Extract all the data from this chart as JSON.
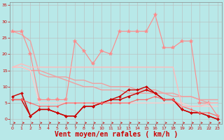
{
  "background_color": "#b8e8e8",
  "grid_color": "#bbbbbb",
  "xlabel": "Vent moyen/en rafales ( km/h )",
  "xlabel_color": "#cc0000",
  "xlabel_fontsize": 7,
  "ytick_labels": [
    "0",
    "5",
    "10",
    "15",
    "20",
    "25",
    "30",
    "35"
  ],
  "yticks": [
    0,
    5,
    10,
    15,
    20,
    25,
    30,
    35
  ],
  "xticks": [
    0,
    1,
    2,
    3,
    4,
    5,
    6,
    7,
    8,
    9,
    10,
    11,
    12,
    13,
    14,
    15,
    16,
    17,
    18,
    19,
    20,
    21,
    22,
    23
  ],
  "xlim": [
    -0.3,
    23.5
  ],
  "ylim": [
    -1.5,
    36
  ],
  "series": [
    {
      "x": [
        0,
        1,
        2,
        3,
        4,
        5,
        6,
        7,
        8,
        9,
        10,
        11,
        12,
        13,
        14,
        15,
        16,
        17,
        18,
        19,
        20,
        21,
        22,
        23
      ],
      "y": [
        27,
        26,
        24,
        14,
        13,
        13,
        12,
        11,
        10,
        10,
        9,
        9,
        9,
        8,
        8,
        8,
        8,
        8,
        7,
        7,
        7,
        6,
        6,
        6
      ],
      "color": "#f0a0a0",
      "lw": 1.0,
      "marker": null
    },
    {
      "x": [
        0,
        1,
        2,
        3,
        4,
        5,
        6,
        7,
        8,
        9,
        10,
        11,
        12,
        13,
        14,
        15,
        16,
        17,
        18,
        19,
        20,
        21,
        22,
        23
      ],
      "y": [
        16,
        16,
        15,
        15,
        14,
        13,
        13,
        12,
        12,
        11,
        11,
        10,
        10,
        10,
        9,
        9,
        9,
        8,
        8,
        7,
        7,
        6,
        5,
        5
      ],
      "color": "#f0a0a0",
      "lw": 1.0,
      "marker": null
    },
    {
      "x": [
        0,
        1,
        2,
        3,
        4,
        5,
        6,
        7,
        8,
        9,
        10,
        11,
        12,
        13,
        14,
        15,
        16,
        17,
        18,
        19,
        20,
        21,
        22,
        23
      ],
      "y": [
        16,
        16,
        15,
        5,
        5,
        5,
        5,
        5,
        5,
        5,
        5,
        5,
        5,
        5,
        5,
        5,
        5,
        5,
        5,
        5,
        4,
        4,
        4,
        4
      ],
      "color": "#ffcccc",
      "lw": 1.0,
      "marker": null
    },
    {
      "x": [
        0,
        1,
        2,
        3,
        4,
        5,
        6,
        7,
        8,
        9,
        10,
        11,
        12,
        13,
        14,
        15,
        16,
        17,
        18,
        19,
        20,
        21,
        22,
        23
      ],
      "y": [
        7,
        8,
        1,
        3,
        3,
        2,
        1,
        1,
        4,
        4,
        5,
        6,
        7,
        9,
        9,
        10,
        8,
        6,
        6,
        3,
        2,
        2,
        1,
        0
      ],
      "color": "#cc0000",
      "lw": 1.0,
      "marker": "D",
      "markersize": 2
    },
    {
      "x": [
        0,
        1,
        2,
        3,
        4,
        5,
        6,
        7,
        8,
        9,
        10,
        11,
        12,
        13,
        14,
        15,
        16,
        17,
        18,
        19,
        20,
        21,
        22,
        23
      ],
      "y": [
        6,
        6,
        1,
        3,
        3,
        2,
        1,
        1,
        4,
        4,
        5,
        6,
        6,
        7,
        8,
        9,
        8,
        6,
        6,
        3,
        2,
        2,
        1,
        0
      ],
      "color": "#cc0000",
      "lw": 1.0,
      "marker": "D",
      "markersize": 2
    },
    {
      "x": [
        0,
        1,
        2,
        3,
        4,
        5,
        6,
        7,
        8,
        9,
        10,
        11,
        12,
        13,
        14,
        15,
        16,
        17,
        18,
        19,
        20,
        21,
        22,
        23
      ],
      "y": [
        6,
        6,
        5,
        4,
        4,
        4,
        5,
        5,
        5,
        5,
        5,
        5,
        5,
        5,
        6,
        6,
        7,
        6,
        6,
        4,
        3,
        2,
        2,
        1
      ],
      "color": "#ff6666",
      "lw": 0.8,
      "marker": "D",
      "markersize": 1.5
    },
    {
      "x": [
        0,
        1,
        2,
        3,
        4,
        5,
        6,
        7,
        8,
        9,
        10,
        11,
        12,
        13,
        14,
        15,
        16,
        17,
        18,
        19,
        20,
        21,
        22,
        23
      ],
      "y": [
        27,
        27,
        20,
        6,
        6,
        6,
        6,
        24,
        21,
        17,
        21,
        20,
        27,
        27,
        27,
        27,
        32,
        22,
        22,
        24,
        24,
        5,
        5,
        1
      ],
      "color": "#ff8888",
      "lw": 0.8,
      "marker": "*",
      "markersize": 4
    },
    {
      "x": [
        0,
        1,
        2,
        3,
        4,
        5,
        6,
        7,
        8,
        9,
        10,
        11,
        12,
        13,
        14,
        15,
        16,
        17,
        18,
        19,
        20,
        21,
        22,
        23
      ],
      "y": [
        16,
        17,
        16,
        16,
        16,
        16,
        16,
        16,
        16,
        16,
        16,
        16,
        16,
        16,
        16,
        16,
        16,
        16,
        16,
        4,
        4,
        4,
        5,
        5
      ],
      "color": "#ffbbbb",
      "lw": 1.0,
      "marker": null
    }
  ]
}
